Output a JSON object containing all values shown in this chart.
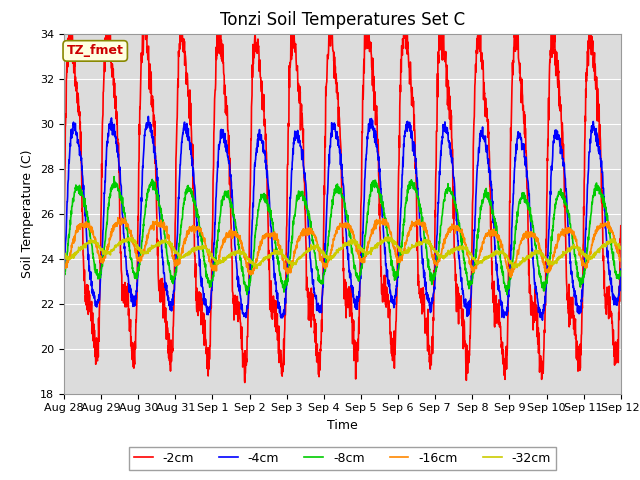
{
  "title": "Tonzi Soil Temperatures Set C",
  "ylabel": "Soil Temperature (C)",
  "xlabel": "Time",
  "ylim": [
    18,
    34
  ],
  "figsize": [
    6.4,
    4.8
  ],
  "dpi": 100,
  "bg_color": "#dcdcdc",
  "series": [
    {
      "label": "-2cm",
      "color": "#ff0000",
      "amp": 6.0,
      "mean": 26.5,
      "phase": 0.0,
      "noise": 0.4,
      "skew": 2.5,
      "amp2": 1.5,
      "phase2": 0.5
    },
    {
      "label": "-4cm",
      "color": "#0000ff",
      "amp": 3.8,
      "mean": 25.8,
      "phase": 0.45,
      "noise": 0.15,
      "skew": 1.2,
      "amp2": 0.5,
      "phase2": 0.8
    },
    {
      "label": "-8cm",
      "color": "#00cc00",
      "amp": 2.0,
      "mean": 25.2,
      "phase": 1.0,
      "noise": 0.1,
      "skew": 0.5,
      "amp2": 0.3,
      "phase2": 1.2
    },
    {
      "label": "-16cm",
      "color": "#ff8800",
      "amp": 0.85,
      "mean": 24.7,
      "phase": 1.8,
      "noise": 0.08,
      "skew": 0.1,
      "amp2": 0.2,
      "phase2": 2.0
    },
    {
      "label": "-32cm",
      "color": "#cccc00",
      "amp": 0.28,
      "mean": 24.3,
      "phase": 2.8,
      "noise": 0.05,
      "skew": 0.0,
      "amp2": 0.05,
      "phase2": 3.0
    }
  ],
  "x_tick_labels": [
    "Aug 28",
    "Aug 29",
    "Aug 30",
    "Aug 31",
    "Sep 1",
    "Sep 2",
    "Sep 3",
    "Sep 4",
    "Sep 5",
    "Sep 6",
    "Sep 7",
    "Sep 8",
    "Sep 9",
    "Sep 10",
    "Sep 11",
    "Sep 12"
  ],
  "annotation_text": "TZ_fmet",
  "n_points": 2160
}
